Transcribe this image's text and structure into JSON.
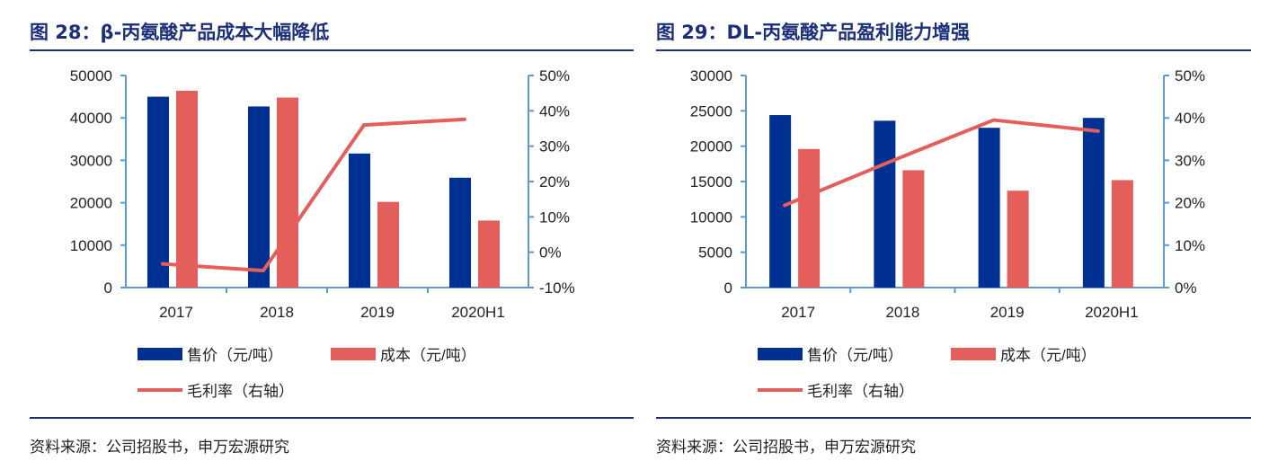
{
  "chart_data": [
    {
      "type": "bar+line",
      "title": "图 28：β-丙氨酸产品成本大幅降低",
      "source": "资料来源：公司招股书，申万宏源研究",
      "categories": [
        "2017",
        "2018",
        "2019",
        "2020H1"
      ],
      "y_left": {
        "ticks": [
          "0",
          "10000",
          "20000",
          "30000",
          "40000",
          "50000"
        ],
        "range": [
          0,
          50000
        ]
      },
      "y_right": {
        "ticks": [
          "-10%",
          "0%",
          "10%",
          "20%",
          "30%",
          "40%",
          "50%"
        ],
        "range": [
          -10,
          50
        ]
      },
      "series": [
        {
          "name": "售价（元/吨）",
          "kind": "bar",
          "axis": "left",
          "color": "#003092",
          "values": [
            45000,
            42700,
            31600,
            25900
          ]
        },
        {
          "name": "成本（元/吨）",
          "kind": "bar",
          "axis": "left",
          "color": "#e45f5b",
          "values": [
            46400,
            44800,
            20200,
            15800
          ]
        },
        {
          "name": "毛利率（右轴）",
          "kind": "line",
          "axis": "right",
          "color": "#e45f5b",
          "values": [
            -3.3,
            -5.2,
            36.0,
            37.6
          ]
        }
      ],
      "grid": false,
      "legend": "bottom"
    },
    {
      "type": "bar+line",
      "title": "图 29：DL-丙氨酸产品盈利能力增强",
      "source": "资料来源：公司招股书，申万宏源研究",
      "categories": [
        "2017",
        "2018",
        "2019",
        "2020H1"
      ],
      "y_left": {
        "ticks": [
          "0",
          "5000",
          "10000",
          "15000",
          "20000",
          "25000",
          "30000"
        ],
        "range": [
          0,
          30000
        ]
      },
      "y_right": {
        "ticks": [
          "0%",
          "10%",
          "20%",
          "30%",
          "40%",
          "50%"
        ],
        "range": [
          0,
          50
        ]
      },
      "series": [
        {
          "name": "售价（元/吨）",
          "kind": "bar",
          "axis": "left",
          "color": "#003092",
          "values": [
            24400,
            23600,
            22600,
            24000
          ]
        },
        {
          "name": "成本（元/吨）",
          "kind": "bar",
          "axis": "left",
          "color": "#e45f5b",
          "values": [
            19600,
            16600,
            13700,
            15200
          ]
        },
        {
          "name": "毛利率（右轴）",
          "kind": "line",
          "axis": "right",
          "color": "#e45f5b",
          "values": [
            19.4,
            29.6,
            39.5,
            36.9
          ]
        }
      ],
      "grid": false,
      "legend": "bottom"
    }
  ]
}
